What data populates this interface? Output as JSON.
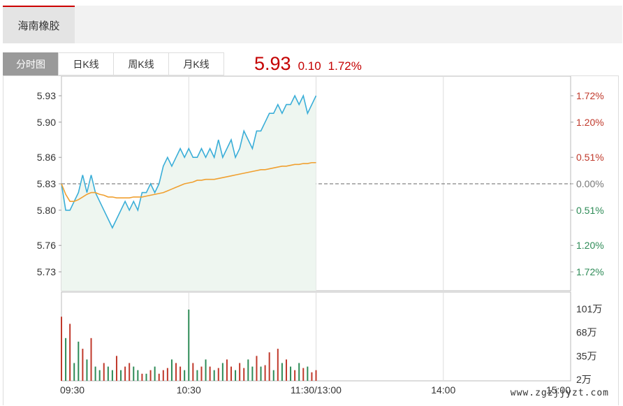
{
  "stock": {
    "name": "海南橡胶"
  },
  "tabs": [
    {
      "label": "分时图",
      "active": true
    },
    {
      "label": "日K线",
      "active": false
    },
    {
      "label": "周K线",
      "active": false
    },
    {
      "label": "月K线",
      "active": false
    }
  ],
  "quote": {
    "price": "5.93",
    "change": "0.10",
    "change_pct": "1.72%"
  },
  "watermark": "www.zgzjjyzt.com",
  "colors": {
    "up": "#c0392b",
    "down": "#2e8b57",
    "price_line": "#3aaed8",
    "avg_line": "#f0a030",
    "quote": "#c40000"
  },
  "chart_data": {
    "type": "line",
    "title": "",
    "prev_close": 5.83,
    "price_ticks": [
      "5.93",
      "5.90",
      "5.86",
      "5.83",
      "5.80",
      "5.76",
      "5.73"
    ],
    "pct_ticks": [
      "1.72%",
      "1.20%",
      "0.51%",
      "0.00%",
      "0.51%",
      "1.20%",
      "1.72%"
    ],
    "volume_ticks": [
      "101万",
      "68万",
      "35万",
      "2万"
    ],
    "time_ticks": [
      "09:30",
      "10:30",
      "11:30/13:00",
      "14:00",
      "15:00"
    ],
    "ylim": [
      5.7,
      5.95
    ],
    "x_minutes": [
      0,
      2,
      4,
      6,
      8,
      10,
      12,
      14,
      16,
      18,
      20,
      22,
      24,
      26,
      28,
      30,
      32,
      34,
      36,
      38,
      40,
      42,
      44,
      46,
      48,
      50,
      52,
      54,
      56,
      58,
      60,
      62,
      64,
      66,
      68,
      70,
      72,
      74,
      76,
      78,
      80,
      82,
      84,
      86,
      88,
      90,
      92,
      94,
      96,
      98,
      100,
      102,
      104,
      106,
      108,
      110,
      112,
      114,
      116,
      118,
      120
    ],
    "series": [
      {
        "values": [
          5.83,
          5.8,
          5.8,
          5.81,
          5.82,
          5.84,
          5.82,
          5.84,
          5.82,
          5.81,
          5.8,
          5.79,
          5.78,
          5.79,
          5.8,
          5.81,
          5.8,
          5.81,
          5.8,
          5.82,
          5.82,
          5.83,
          5.82,
          5.83,
          5.85,
          5.86,
          5.85,
          5.86,
          5.87,
          5.86,
          5.87,
          5.86,
          5.86,
          5.87,
          5.86,
          5.87,
          5.86,
          5.88,
          5.86,
          5.87,
          5.88,
          5.86,
          5.87,
          5.89,
          5.88,
          5.87,
          5.89,
          5.89,
          5.9,
          5.91,
          5.91,
          5.92,
          5.91,
          5.92,
          5.92,
          5.93,
          5.92,
          5.93,
          5.91,
          5.92,
          5.93
        ]
      },
      {
        "values": [
          5.83,
          5.818,
          5.81,
          5.81,
          5.812,
          5.815,
          5.818,
          5.82,
          5.82,
          5.818,
          5.817,
          5.815,
          5.815,
          5.814,
          5.814,
          5.814,
          5.814,
          5.815,
          5.815,
          5.815,
          5.816,
          5.817,
          5.818,
          5.819,
          5.82,
          5.822,
          5.824,
          5.826,
          5.828,
          5.83,
          5.831,
          5.832,
          5.834,
          5.834,
          5.835,
          5.835,
          5.835,
          5.836,
          5.837,
          5.838,
          5.839,
          5.84,
          5.841,
          5.842,
          5.843,
          5.844,
          5.845,
          5.846,
          5.846,
          5.847,
          5.848,
          5.849,
          5.85,
          5.85,
          5.851,
          5.852,
          5.852,
          5.853,
          5.853,
          5.854,
          5.854
        ]
      }
    ],
    "volume": [
      90,
      60,
      80,
      25,
      55,
      45,
      30,
      60,
      20,
      15,
      25,
      20,
      15,
      35,
      15,
      20,
      25,
      20,
      15,
      10,
      10,
      15,
      20,
      10,
      15,
      18,
      30,
      25,
      20,
      15,
      100,
      25,
      15,
      20,
      30,
      20,
      15,
      18,
      25,
      30,
      20,
      15,
      25,
      18,
      30,
      20,
      35,
      20,
      22,
      40,
      15,
      45,
      25,
      30,
      20,
      15,
      25,
      18,
      20,
      12,
      15
    ],
    "volume_max": 101,
    "volume_color": [
      "up",
      "down",
      "up",
      "down",
      "down",
      "up",
      "down",
      "up",
      "down",
      "down",
      "up",
      "down",
      "down",
      "up",
      "down",
      "up",
      "up",
      "down",
      "down",
      "up",
      "down",
      "up",
      "down",
      "up",
      "up",
      "up",
      "down",
      "up",
      "up",
      "down",
      "down",
      "up",
      "down",
      "up",
      "down",
      "up",
      "down",
      "up",
      "down",
      "up",
      "up",
      "down",
      "up",
      "up",
      "down",
      "down",
      "up",
      "down",
      "up",
      "up",
      "down",
      "up",
      "down",
      "up",
      "down",
      "up",
      "down",
      "up",
      "down",
      "up",
      "up"
    ]
  }
}
